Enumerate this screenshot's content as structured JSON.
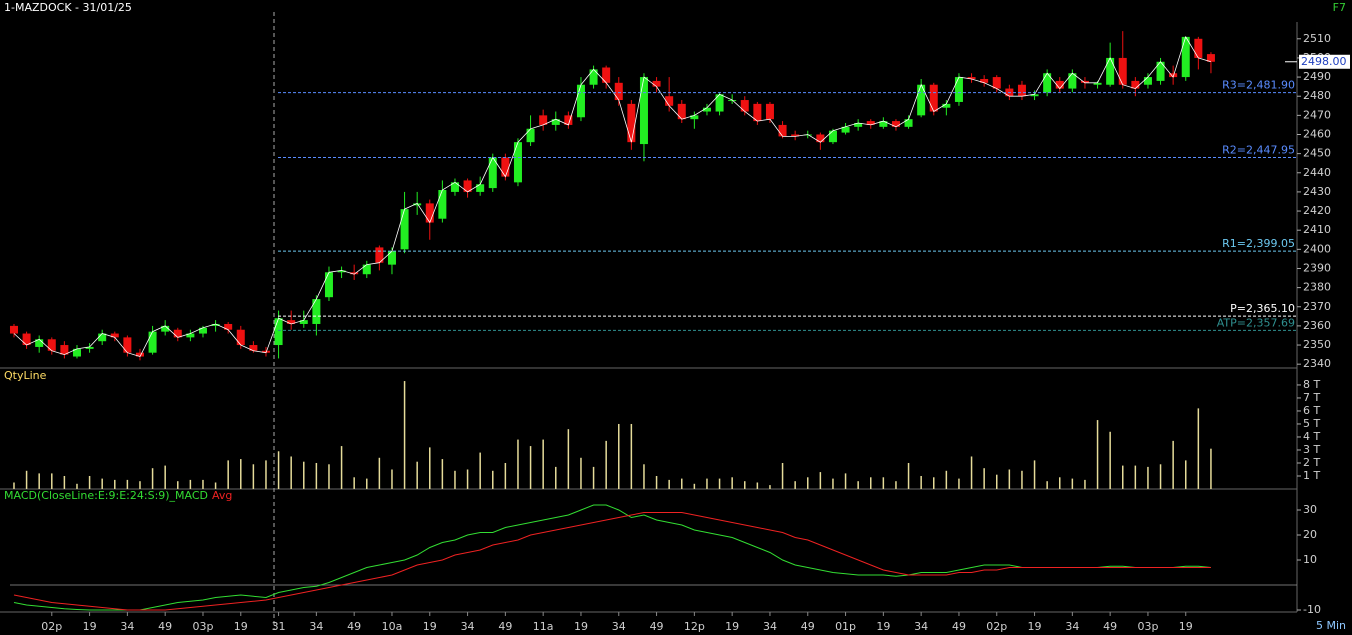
{
  "header": {
    "title": "1-MAZDOCK - 31/01/25",
    "key": "F7",
    "interval": "5 Min"
  },
  "chart_data": [
    {
      "type": "candlestick",
      "open": [
        2360,
        2356,
        2349,
        2353,
        2350,
        2344,
        2348,
        2352,
        2356,
        2354,
        2346,
        2346,
        2357,
        2358,
        2354,
        2356,
        2360,
        2361,
        2358,
        2350,
        2347,
        2350,
        2363,
        2361,
        2361,
        2375,
        2388,
        2388,
        2387,
        2401,
        2392,
        2400,
        2423,
        2424,
        2416,
        2430,
        2436,
        2430,
        2432,
        2448,
        2435,
        2456,
        2470,
        2465,
        2470,
        2469,
        2486,
        2495,
        2487,
        2476,
        2455,
        2488,
        2480,
        2476,
        2468,
        2472,
        2472,
        2478,
        2478,
        2476,
        2476,
        2465,
        2460,
        2460,
        2460,
        2456,
        2461,
        2464,
        2467,
        2464,
        2467,
        2464,
        2470,
        2486,
        2474,
        2477,
        2490,
        2489,
        2490,
        2484,
        2486,
        2480,
        2482,
        2488,
        2484,
        2488,
        2486,
        2486,
        2500,
        2488,
        2486,
        2488,
        2492,
        2490,
        2510,
        2502
      ],
      "high": [
        2361,
        2357,
        2355,
        2354,
        2352,
        2350,
        2351,
        2358,
        2357,
        2355,
        2348,
        2360,
        2363,
        2359,
        2358,
        2360,
        2363,
        2362,
        2360,
        2352,
        2349,
        2368,
        2368,
        2368,
        2376,
        2391,
        2391,
        2392,
        2394,
        2402,
        2401,
        2430,
        2430,
        2426,
        2436,
        2437,
        2437,
        2438,
        2450,
        2450,
        2458,
        2470,
        2473,
        2472,
        2472,
        2490,
        2496,
        2496,
        2490,
        2478,
        2492,
        2490,
        2490,
        2478,
        2472,
        2476,
        2482,
        2481,
        2480,
        2477,
        2477,
        2467,
        2462,
        2462,
        2461,
        2463,
        2466,
        2468,
        2468,
        2469,
        2468,
        2470,
        2489,
        2487,
        2478,
        2492,
        2492,
        2491,
        2491,
        2486,
        2488,
        2483,
        2494,
        2490,
        2494,
        2490,
        2488,
        2508,
        2514,
        2490,
        2492,
        2500,
        2496,
        2511,
        2511,
        2503
      ],
      "low": [
        2354,
        2348,
        2346,
        2345,
        2343,
        2343,
        2346,
        2350,
        2352,
        2344,
        2342,
        2345,
        2355,
        2352,
        2352,
        2354,
        2357,
        2356,
        2348,
        2346,
        2344,
        2343,
        2358,
        2359,
        2355,
        2373,
        2385,
        2384,
        2385,
        2389,
        2387,
        2398,
        2418,
        2405,
        2414,
        2428,
        2427,
        2428,
        2430,
        2436,
        2433,
        2454,
        2462,
        2462,
        2463,
        2467,
        2484,
        2484,
        2475,
        2452,
        2446,
        2482,
        2472,
        2466,
        2463,
        2470,
        2470,
        2476,
        2470,
        2465,
        2466,
        2458,
        2457,
        2458,
        2452,
        2455,
        2460,
        2462,
        2463,
        2463,
        2462,
        2463,
        2469,
        2470,
        2470,
        2475,
        2487,
        2485,
        2482,
        2478,
        2478,
        2478,
        2480,
        2482,
        2482,
        2484,
        2484,
        2485,
        2484,
        2480,
        2484,
        2486,
        2486,
        2488,
        2494,
        2492
      ],
      "close": [
        2356,
        2350,
        2353,
        2347,
        2345,
        2348,
        2349,
        2356,
        2354,
        2346,
        2344,
        2357,
        2360,
        2354,
        2356,
        2359,
        2361,
        2358,
        2350,
        2347,
        2346,
        2364,
        2361,
        2363,
        2374,
        2388,
        2389,
        2387,
        2392,
        2393,
        2399,
        2421,
        2424,
        2414,
        2431,
        2435,
        2430,
        2434,
        2448,
        2438,
        2456,
        2463,
        2465,
        2468,
        2465,
        2486,
        2494,
        2487,
        2478,
        2456,
        2490,
        2485,
        2475,
        2468,
        2470,
        2474,
        2481,
        2478,
        2472,
        2467,
        2468,
        2459,
        2459,
        2460,
        2456,
        2462,
        2464,
        2466,
        2465,
        2467,
        2464,
        2468,
        2486,
        2472,
        2476,
        2490,
        2489,
        2487,
        2484,
        2480,
        2480,
        2481,
        2492,
        2484,
        2492,
        2487,
        2487,
        2500,
        2486,
        2484,
        2490,
        2498,
        2490,
        2511,
        2500,
        2498
      ],
      "up_color": "#22ee22",
      "down_color": "#ee1111",
      "line_color": "#ffffff",
      "levels": [
        {
          "value": 2481.9,
          "label": "R3=2,481.90",
          "color": "#5a8cff"
        },
        {
          "value": 2447.95,
          "label": "R2=2,447.95",
          "color": "#5a8cff"
        },
        {
          "value": 2399.05,
          "label": "R1=2,399.05",
          "color": "#6cc8f0"
        },
        {
          "value": 2365.1,
          "label": "P=2,365.10",
          "color": "#ffffff"
        },
        {
          "value": 2357.69,
          "label": "ATP=2,357.69",
          "color": "#2f8f8f"
        }
      ],
      "last_price": {
        "value": 2498,
        "label": "2498.00"
      },
      "xlim": [
        -1.11,
        101.83
      ],
      "ylim": [
        2338,
        2524
      ],
      "yticks": [
        2340,
        2350,
        2360,
        2370,
        2380,
        2390,
        2400,
        2410,
        2420,
        2430,
        2440,
        2450,
        2460,
        2470,
        2480,
        2490,
        2500,
        2510
      ]
    },
    {
      "type": "bar",
      "title": "QtyLine",
      "color": "#e6dc9a",
      "values": [
        0.5,
        1.4,
        1.2,
        1.2,
        1.0,
        0.4,
        1.0,
        0.8,
        0.7,
        0.7,
        0.6,
        1.6,
        1.8,
        0.6,
        0.7,
        0.7,
        0.5,
        2.2,
        2.3,
        1.9,
        2.2,
        2.9,
        2.5,
        2.1,
        2.0,
        1.9,
        3.3,
        0.9,
        0.8,
        2.4,
        1.5,
        8.3,
        2.1,
        3.2,
        2.3,
        1.4,
        1.5,
        2.8,
        1.4,
        2.0,
        3.8,
        3.3,
        3.8,
        1.7,
        4.6,
        2.4,
        1.7,
        3.7,
        5.0,
        5.0,
        1.9,
        1.0,
        0.7,
        0.8,
        0.4,
        0.8,
        0.8,
        0.9,
        0.6,
        0.5,
        0.3,
        2.0,
        0.6,
        0.9,
        1.3,
        0.8,
        1.2,
        0.6,
        0.9,
        0.9,
        0.6,
        2.0,
        1.0,
        0.9,
        1.4,
        0.8,
        2.5,
        1.6,
        1.1,
        1.5,
        1.4,
        2.2,
        0.6,
        0.9,
        0.8,
        0.7,
        5.3,
        4.4,
        1.8,
        1.8,
        1.7,
        1.9,
        3.7,
        2.2,
        6.2,
        3.1
      ],
      "xlim": [
        -1.11,
        101.83
      ],
      "ylim": [
        0,
        9.15
      ],
      "yticks": [
        {
          "value": 1,
          "label": "1 T"
        },
        {
          "value": 2,
          "label": "2 T"
        },
        {
          "value": 3,
          "label": "3 T"
        },
        {
          "value": 4,
          "label": "4 T"
        },
        {
          "value": 5,
          "label": "5 T"
        },
        {
          "value": 6,
          "label": "6 T"
        },
        {
          "value": 7,
          "label": "7 T"
        },
        {
          "value": 8,
          "label": "8 T"
        }
      ]
    },
    {
      "type": "line",
      "series": [
        {
          "name": "MACD(CloseLine:E:9:E:24:S:9)_MACD",
          "color": "#33dd33",
          "values": [
            -7,
            -8,
            -8.5,
            -9,
            -9.5,
            -9.8,
            -10,
            -10,
            -10,
            -10,
            -10,
            -9,
            -8,
            -7,
            -6.5,
            -6,
            -5,
            -4.5,
            -4,
            -4.5,
            -5,
            -3,
            -2,
            -1,
            -0.5,
            1,
            3,
            5,
            7,
            8,
            9,
            10,
            12,
            15,
            17,
            18,
            20,
            21,
            21,
            23,
            24,
            25,
            26,
            27,
            28,
            30,
            32,
            32,
            30,
            27,
            28,
            26,
            25,
            24,
            22,
            21,
            20,
            19,
            17,
            15,
            13,
            10,
            8,
            7,
            6,
            5,
            4.5,
            4,
            4,
            4,
            3.5,
            4,
            5,
            5,
            5,
            6,
            7,
            8,
            8,
            8,
            7,
            7,
            7,
            7,
            7,
            7,
            7,
            7.5,
            7.5,
            7,
            7,
            7,
            7,
            7.5,
            7.5,
            7
          ]
        },
        {
          "name": "Avg",
          "color": "#ee2222",
          "values": [
            -4,
            -5,
            -6,
            -7,
            -7.5,
            -8,
            -8.5,
            -9,
            -9.5,
            -10,
            -10,
            -10,
            -10,
            -9.5,
            -9,
            -8.5,
            -8,
            -7.5,
            -7,
            -6.5,
            -6,
            -5,
            -4,
            -3,
            -2,
            -1,
            0,
            1,
            2,
            3,
            4,
            6,
            8,
            9,
            10,
            12,
            13,
            14,
            16,
            17,
            18,
            20,
            21,
            22,
            23,
            24,
            25,
            26,
            27,
            28,
            29,
            29,
            29,
            29,
            28,
            27,
            26,
            25,
            24,
            23,
            22,
            21,
            19,
            18,
            16,
            14,
            12,
            10,
            8,
            6,
            5,
            4,
            4,
            4,
            4,
            5,
            5,
            6,
            6,
            7,
            7,
            7,
            7,
            7,
            7,
            7,
            7,
            7,
            7,
            7,
            7,
            7,
            7,
            7,
            7,
            7
          ]
        }
      ],
      "xlim": [
        -1.11,
        101.83
      ],
      "ylim": [
        -10.8,
        34
      ],
      "yticks": [
        30,
        20,
        10,
        -10
      ],
      "xticks": [
        {
          "value": 3,
          "label": "02p"
        },
        {
          "value": 6,
          "label": "19"
        },
        {
          "value": 9,
          "label": "34"
        },
        {
          "value": 12,
          "label": "49"
        },
        {
          "value": 15,
          "label": "03p"
        },
        {
          "value": 18,
          "label": "19"
        },
        {
          "value": 21,
          "label": "31"
        },
        {
          "value": 24,
          "label": "34"
        },
        {
          "value": 27,
          "label": "49"
        },
        {
          "value": 30,
          "label": "10a"
        },
        {
          "value": 33,
          "label": "19"
        },
        {
          "value": 36,
          "label": "34"
        },
        {
          "value": 39,
          "label": "49"
        },
        {
          "value": 42,
          "label": "11a"
        },
        {
          "value": 45,
          "label": "19"
        },
        {
          "value": 48,
          "label": "34"
        },
        {
          "value": 51,
          "label": "49"
        },
        {
          "value": 54,
          "label": "12p"
        },
        {
          "value": 57,
          "label": "19"
        },
        {
          "value": 60,
          "label": "34"
        },
        {
          "value": 63,
          "label": "49"
        },
        {
          "value": 66,
          "label": "01p"
        },
        {
          "value": 69,
          "label": "19"
        },
        {
          "value": 72,
          "label": "34"
        },
        {
          "value": 75,
          "label": "49"
        },
        {
          "value": 78,
          "label": "02p"
        },
        {
          "value": 81,
          "label": "19"
        },
        {
          "value": 84,
          "label": "34"
        },
        {
          "value": 87,
          "label": "49"
        },
        {
          "value": 90,
          "label": "03p"
        },
        {
          "value": 93,
          "label": "19"
        }
      ]
    }
  ]
}
